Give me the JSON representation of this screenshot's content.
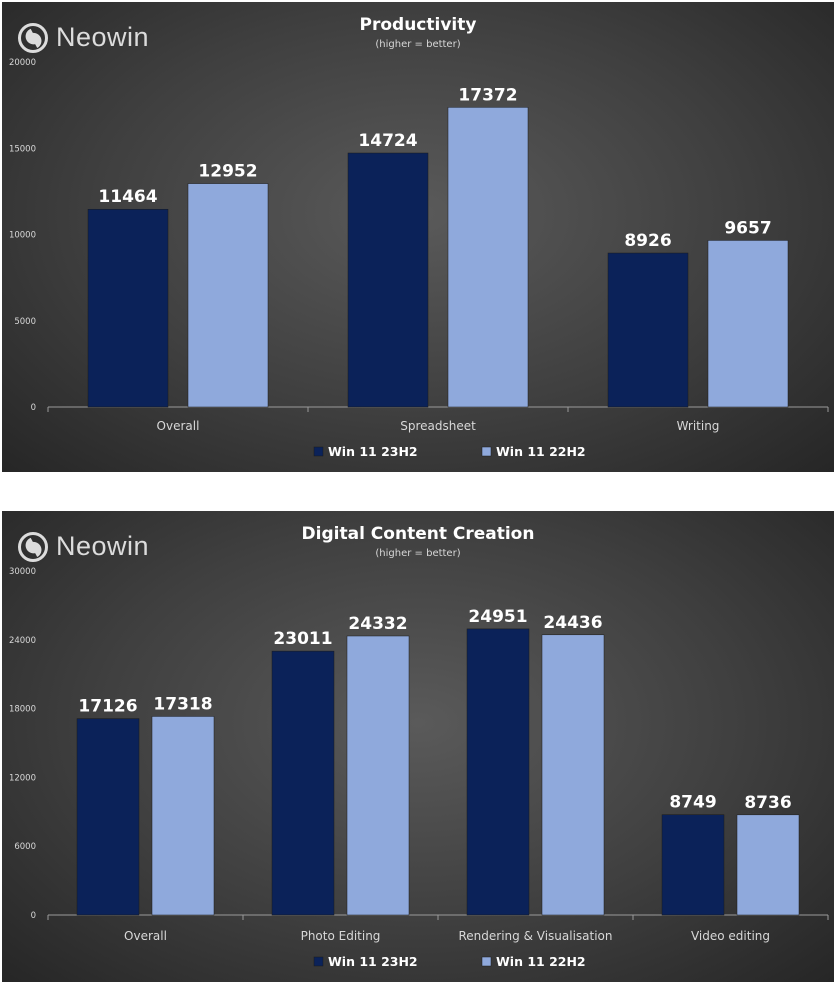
{
  "brand": {
    "logo_text": "Neowin"
  },
  "colors": {
    "series_23h2": "#0b2259",
    "series_22h2": "#8fa9dc",
    "text": "#ffffff",
    "axis": "#d8d8d8"
  },
  "chart_data": [
    {
      "type": "bar",
      "title": "Productivity",
      "subtitle": "(higher = better)",
      "categories": [
        "Overall",
        "Spreadsheet",
        "Writing"
      ],
      "series": [
        {
          "name": "Win 11 23H2",
          "values": [
            11464,
            14724,
            8926
          ]
        },
        {
          "name": "Win 11 22H2",
          "values": [
            12952,
            17372,
            9657
          ]
        }
      ],
      "ylim": [
        0,
        20000
      ],
      "yticks": [
        0,
        5000,
        10000,
        15000,
        20000
      ],
      "legend": "bottom-center",
      "grid": false
    },
    {
      "type": "bar",
      "title": "Digital Content Creation",
      "subtitle": "(higher = better)",
      "categories": [
        "Overall",
        "Photo Editing",
        "Rendering & Visualisation",
        "Video editing"
      ],
      "series": [
        {
          "name": "Win 11 23H2",
          "values": [
            17126,
            23011,
            24951,
            8749
          ]
        },
        {
          "name": "Win 11 22H2",
          "values": [
            17318,
            24332,
            24436,
            8736
          ]
        }
      ],
      "ylim": [
        0,
        30000
      ],
      "yticks": [
        0,
        6000,
        12000,
        18000,
        24000,
        30000
      ],
      "legend": "bottom-center",
      "grid": false
    }
  ]
}
